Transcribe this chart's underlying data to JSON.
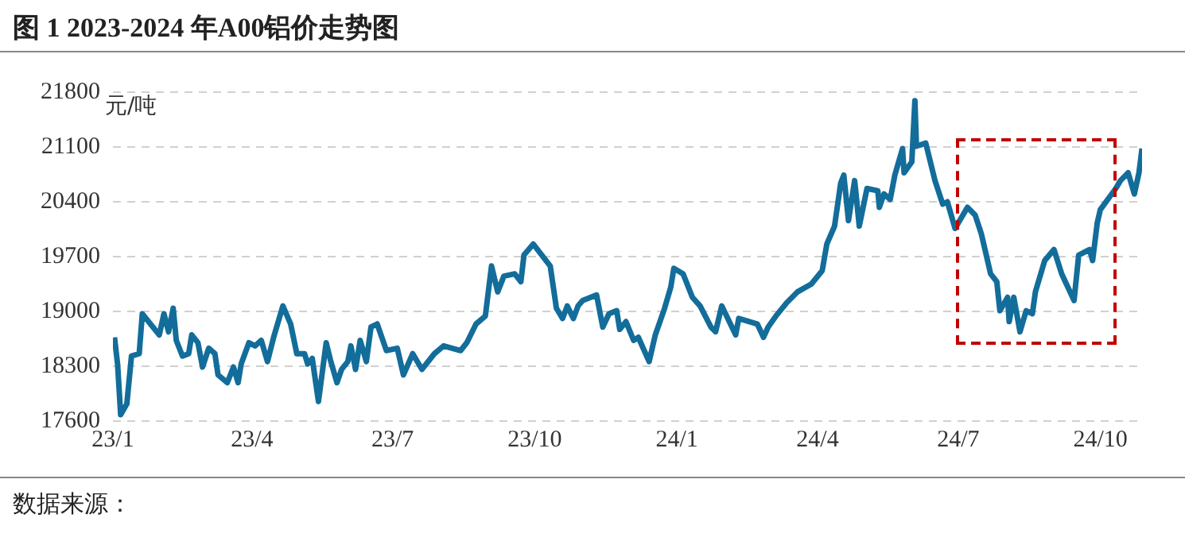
{
  "chart_data": {
    "type": "line",
    "title": "图 1 2023-2024 年A00铝价走势图",
    "ylabel": "元/吨",
    "annotations": [
      "数据来源："
    ],
    "x": [
      "2023-01-02",
      "2023-01-04",
      "2023-01-06",
      "2023-01-10",
      "2023-01-13",
      "2023-01-18",
      "2023-01-20",
      "2023-01-31",
      "2023-02-03",
      "2023-02-06",
      "2023-02-09",
      "2023-02-11",
      "2023-02-15",
      "2023-02-19",
      "2023-02-21",
      "2023-02-25",
      "2023-02-28",
      "2023-03-04",
      "2023-03-08",
      "2023-03-10",
      "2023-03-16",
      "2023-03-20",
      "2023-03-23",
      "2023-03-25",
      "2023-03-30",
      "2023-04-03",
      "2023-04-07",
      "2023-04-11",
      "2023-04-15",
      "2023-04-21",
      "2023-04-26",
      "2023-04-30",
      "2023-05-05",
      "2023-05-07",
      "2023-05-10",
      "2023-05-14",
      "2023-05-19",
      "2023-05-22",
      "2023-05-26",
      "2023-05-29",
      "2023-06-02",
      "2023-06-04",
      "2023-06-07",
      "2023-06-10",
      "2023-06-14",
      "2023-06-17",
      "2023-06-21",
      "2023-06-27",
      "2023-07-04",
      "2023-07-08",
      "2023-07-14",
      "2023-07-20",
      "2023-07-28",
      "2023-08-03",
      "2023-08-14",
      "2023-08-18",
      "2023-08-24",
      "2023-08-30",
      "2023-09-03",
      "2023-09-07",
      "2023-09-11",
      "2023-09-18",
      "2023-09-22",
      "2023-09-24",
      "2023-09-30",
      "2023-10-11",
      "2023-10-15",
      "2023-10-19",
      "2023-10-22",
      "2023-10-26",
      "2023-10-29",
      "2023-11-01",
      "2023-11-10",
      "2023-11-14",
      "2023-11-18",
      "2023-11-23",
      "2023-11-25",
      "2023-11-29",
      "2023-12-04",
      "2023-12-07",
      "2023-12-14",
      "2023-12-18",
      "2023-12-24",
      "2023-12-28",
      "2023-12-30",
      "2024-01-05",
      "2024-01-11",
      "2024-01-16",
      "2024-01-23",
      "2024-01-26",
      "2024-01-30",
      "2024-02-08",
      "2024-02-10",
      "2024-02-22",
      "2024-02-26",
      "2024-02-29",
      "2024-03-05",
      "2024-03-12",
      "2024-03-19",
      "2024-03-28",
      "2024-04-04",
      "2024-04-07",
      "2024-04-12",
      "2024-04-16",
      "2024-04-18",
      "2024-04-21",
      "2024-04-25",
      "2024-04-28",
      "2024-05-03",
      "2024-05-10",
      "2024-05-11",
      "2024-05-14",
      "2024-05-18",
      "2024-05-21",
      "2024-05-26",
      "2024-05-27",
      "2024-06-01",
      "2024-06-03",
      "2024-06-04",
      "2024-06-10",
      "2024-06-16",
      "2024-06-21",
      "2024-06-24",
      "2024-06-29",
      "2024-07-07",
      "2024-07-12",
      "2024-07-16",
      "2024-07-22",
      "2024-07-26",
      "2024-07-28",
      "2024-08-02",
      "2024-08-03",
      "2024-08-06",
      "2024-08-10",
      "2024-08-14",
      "2024-08-18",
      "2024-08-20",
      "2024-08-26",
      "2024-09-01",
      "2024-09-06",
      "2024-09-10",
      "2024-09-14",
      "2024-09-17",
      "2024-09-24",
      "2024-09-26",
      "2024-09-29",
      "2024-10-01",
      "2024-10-11",
      "2024-10-14",
      "2024-10-19",
      "2024-10-23",
      "2024-10-26",
      "2024-10-28"
    ],
    "series": [
      {
        "color": "#136d9a",
        "values": [
          18670,
          18330,
          17680,
          17820,
          18430,
          18460,
          18970,
          18700,
          18970,
          18740,
          19040,
          18630,
          18430,
          18460,
          18700,
          18600,
          18290,
          18530,
          18460,
          18190,
          18090,
          18290,
          18090,
          18330,
          18600,
          18560,
          18630,
          18360,
          18670,
          19070,
          18840,
          18460,
          18460,
          18330,
          18400,
          17850,
          18600,
          18360,
          18090,
          18260,
          18360,
          18560,
          18260,
          18630,
          18360,
          18800,
          18840,
          18500,
          18530,
          18190,
          18460,
          18260,
          18460,
          18560,
          18500,
          18600,
          18840,
          18940,
          19580,
          19250,
          19450,
          19480,
          19380,
          19720,
          19860,
          19580,
          19040,
          18910,
          19070,
          18910,
          19070,
          19140,
          19210,
          18800,
          18970,
          19010,
          18770,
          18870,
          18630,
          18670,
          18360,
          18700,
          19040,
          19310,
          19550,
          19480,
          19180,
          19070,
          18800,
          18740,
          19070,
          18700,
          18910,
          18840,
          18670,
          18800,
          18940,
          19110,
          19250,
          19350,
          19520,
          19860,
          20090,
          20640,
          20740,
          20160,
          20670,
          20090,
          20570,
          20540,
          20330,
          20500,
          20430,
          20740,
          21080,
          20770,
          20910,
          21690,
          21110,
          21150,
          20670,
          20370,
          20400,
          20060,
          20330,
          20230,
          19990,
          19480,
          19380,
          19010,
          19180,
          18870,
          19180,
          18740,
          19010,
          18970,
          19250,
          19650,
          19790,
          19480,
          19310,
          19140,
          19720,
          19790,
          19650,
          20130,
          20300,
          20570,
          20670,
          20770,
          20500,
          20770,
          21080
        ]
      }
    ],
    "xlim": [
      "2023-01-01",
      "2024-10-28"
    ],
    "xticks": [
      {
        "value": "2023-01",
        "label": "23/1"
      },
      {
        "value": "2023-04",
        "label": "23/4"
      },
      {
        "value": "2023-07",
        "label": "23/7"
      },
      {
        "value": "2023-10",
        "label": "23/10"
      },
      {
        "value": "2024-01",
        "label": "24/1"
      },
      {
        "value": "2024-04",
        "label": "24/4"
      },
      {
        "value": "2024-07",
        "label": "24/7"
      },
      {
        "value": "2024-10",
        "label": "24/10"
      }
    ],
    "ylim": [
      17600,
      21800
    ],
    "yticks": [
      17600,
      18300,
      19000,
      19700,
      20400,
      21100,
      21800
    ],
    "grid": "y",
    "legend": false,
    "marker": "none",
    "line_style": "solid"
  }
}
